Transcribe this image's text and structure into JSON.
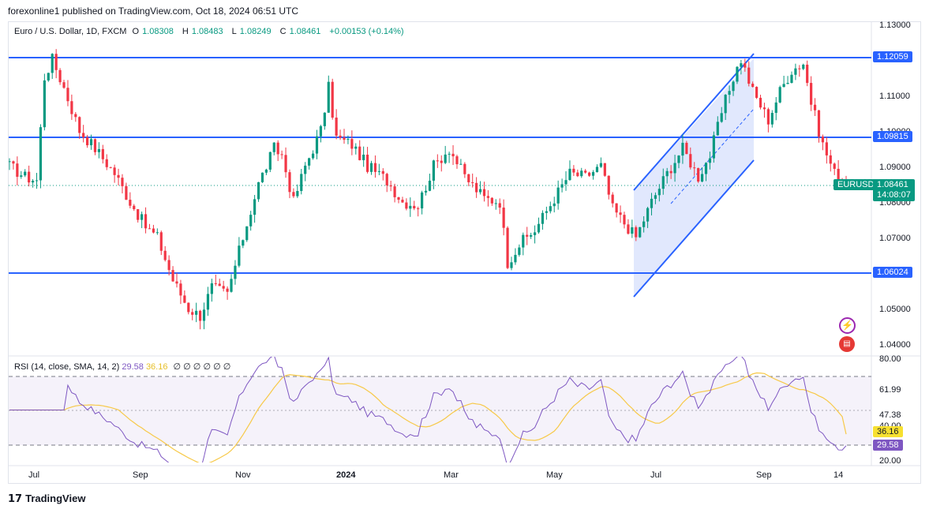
{
  "publisher_line": "forexonline1 published on TradingView.com, Oct 18, 2024 06:51 UTC",
  "symbol": {
    "name": "Euro / U.S. Dollar, 1D, FXCM",
    "o_label": "O",
    "o": "1.08308",
    "h_label": "H",
    "h": "1.08483",
    "l_label": "L",
    "l": "1.08249",
    "c_label": "C",
    "c": "1.08461",
    "change": "+0.00153 (+0.14%)"
  },
  "price_axis_labels": [
    "1.13000",
    "1.11000",
    "1.10000",
    "1.09000",
    "1.08000",
    "1.07000",
    "1.05000",
    "1.04000"
  ],
  "level_labels": {
    "top": "1.12059",
    "mid": "1.09815",
    "bottom": "1.06024"
  },
  "current_price": {
    "ticker": "EURUSD",
    "price": "1.08461",
    "countdown": "14:08:07"
  },
  "rsi": {
    "title": "RSI (14, close, SMA, 14, 2)",
    "rsi_value": "29.58",
    "sma_value": "36.16",
    "axis_labels": [
      "80.00",
      "61.99",
      "47.38",
      "40.00",
      "20.00"
    ],
    "badge_rsi": "29.58",
    "badge_sma": "36.16"
  },
  "time_axis": [
    "Jul",
    "Sep",
    "Nov",
    "2024",
    "Mar",
    "May",
    "Jul",
    "Sep",
    "14"
  ],
  "brand": "TradingView",
  "colors": {
    "up": "#089981",
    "down": "#f23645",
    "level_line": "#2962ff",
    "rsi_line": "#7e57c2",
    "rsi_sma": "#f7c948",
    "channel_fill": "#d4defc"
  },
  "chart_data": {
    "type": "candlestick",
    "title": "Euro / U.S. Dollar, 1D, FXCM",
    "ylim": [
      1.04,
      1.13
    ],
    "x_ticks": [
      "Jul",
      "Sep",
      "Nov",
      "2024",
      "Mar",
      "May",
      "Jul",
      "Sep",
      "14"
    ],
    "horizontal_levels": [
      1.12059,
      1.09815,
      1.06024
    ],
    "last_close": 1.08461,
    "path": [
      [
        0,
        1.09
      ],
      [
        4,
        1.087
      ],
      [
        7,
        1.086
      ],
      [
        9,
        1.115
      ],
      [
        11,
        1.12
      ],
      [
        14,
        1.112
      ],
      [
        18,
        1.1
      ],
      [
        22,
        1.095
      ],
      [
        27,
        1.088
      ],
      [
        31,
        1.08
      ],
      [
        35,
        1.073
      ],
      [
        38,
        1.07
      ],
      [
        42,
        1.058
      ],
      [
        46,
        1.05
      ],
      [
        49,
        1.048
      ],
      [
        52,
        1.056
      ],
      [
        56,
        1.054
      ],
      [
        60,
        1.07
      ],
      [
        64,
        1.085
      ],
      [
        68,
        1.095
      ],
      [
        70,
        1.093
      ],
      [
        73,
        1.08
      ],
      [
        76,
        1.09
      ],
      [
        80,
        1.1
      ],
      [
        82,
        1.112
      ],
      [
        84,
        1.098
      ],
      [
        88,
        1.096
      ],
      [
        92,
        1.09
      ],
      [
        97,
        1.086
      ],
      [
        101,
        1.08
      ],
      [
        105,
        1.079
      ],
      [
        109,
        1.09
      ],
      [
        113,
        1.095
      ],
      [
        117,
        1.087
      ],
      [
        122,
        1.081
      ],
      [
        126,
        1.08
      ],
      [
        128,
        1.063
      ],
      [
        131,
        1.068
      ],
      [
        135,
        1.072
      ],
      [
        140,
        1.081
      ],
      [
        144,
        1.088
      ],
      [
        148,
        1.087
      ],
      [
        152,
        1.09
      ],
      [
        155,
        1.078
      ],
      [
        158,
        1.074
      ],
      [
        161,
        1.07
      ],
      [
        165,
        1.08
      ],
      [
        169,
        1.088
      ],
      [
        173,
        1.095
      ],
      [
        177,
        1.087
      ],
      [
        180,
        1.093
      ],
      [
        183,
        1.105
      ],
      [
        186,
        1.115
      ],
      [
        188,
        1.12
      ],
      [
        191,
        1.111
      ],
      [
        195,
        1.103
      ],
      [
        198,
        1.111
      ],
      [
        201,
        1.117
      ],
      [
        204,
        1.119
      ],
      [
        206,
        1.108
      ],
      [
        209,
        1.096
      ],
      [
        212,
        1.088
      ],
      [
        215,
        1.0846
      ]
    ],
    "series": [
      {
        "name": "RSI (14, close)",
        "last": 29.58
      },
      {
        "name": "RSI-based SMA (14)",
        "last": 36.16
      }
    ],
    "rsi_ylim": [
      20,
      80
    ]
  }
}
